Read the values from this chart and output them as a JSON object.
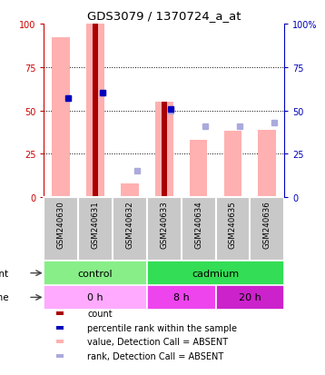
{
  "title": "GDS3079 / 1370724_a_at",
  "samples": [
    "GSM240630",
    "GSM240631",
    "GSM240632",
    "GSM240633",
    "GSM240634",
    "GSM240635",
    "GSM240636"
  ],
  "count_values": [
    0,
    100,
    0,
    55,
    0,
    0,
    0
  ],
  "percentile_rank": [
    57,
    60,
    null,
    51,
    null,
    null,
    null
  ],
  "value_absent": [
    92,
    100,
    8,
    55,
    33,
    38,
    39
  ],
  "rank_absent": [
    57,
    60,
    15,
    50,
    41,
    41,
    43
  ],
  "agent_groups": [
    {
      "label": "control",
      "start": 0,
      "end": 3,
      "color": "#88EE88"
    },
    {
      "label": "cadmium",
      "start": 3,
      "end": 7,
      "color": "#33DD55"
    }
  ],
  "time_groups": [
    {
      "label": "0 h",
      "start": 0,
      "end": 3,
      "color": "#FFAAFF"
    },
    {
      "label": "8 h",
      "start": 3,
      "end": 5,
      "color": "#EE44EE"
    },
    {
      "label": "20 h",
      "start": 5,
      "end": 7,
      "color": "#CC22CC"
    }
  ],
  "ylim": [
    0,
    100
  ],
  "count_color": "#AA0000",
  "percentile_color": "#0000BB",
  "value_absent_color": "#FFB0B0",
  "rank_absent_color": "#AAAADD",
  "background_label": "#C8C8C8",
  "left_axis_color": "#CC0000",
  "right_axis_color": "#0000BB",
  "legend_items": [
    {
      "color": "#AA0000",
      "label": "count"
    },
    {
      "color": "#0000BB",
      "label": "percentile rank within the sample"
    },
    {
      "color": "#FFB0B0",
      "label": "value, Detection Call = ABSENT"
    },
    {
      "color": "#AAAADD",
      "label": "rank, Detection Call = ABSENT"
    }
  ]
}
